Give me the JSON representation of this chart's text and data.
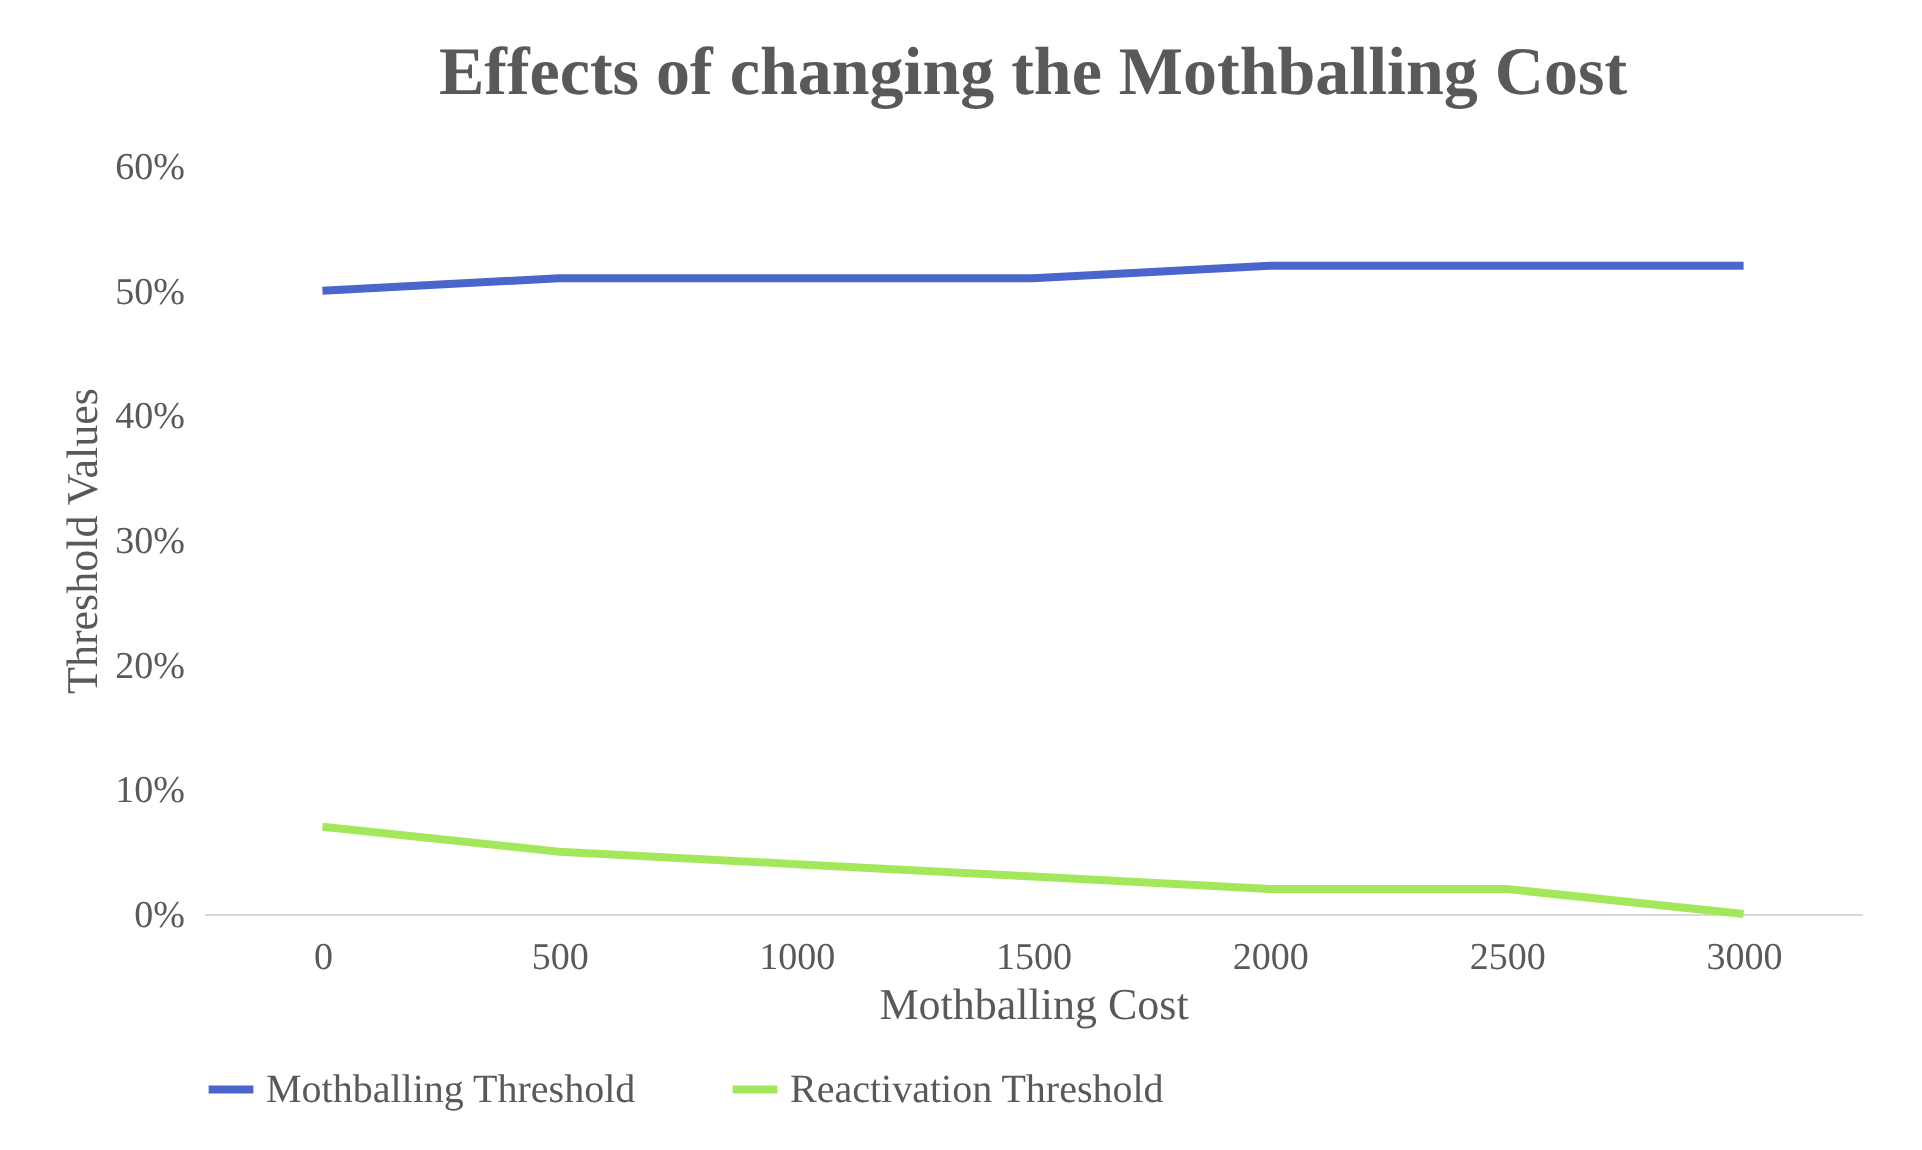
{
  "chart_data": {
    "type": "line",
    "title": "Effects of changing the Mothballing Cost",
    "xlabel": "Mothballing Cost",
    "ylabel": "Threshold Values",
    "categories": [
      "0",
      "500",
      "1000",
      "1500",
      "2000",
      "2500",
      "3000"
    ],
    "series": [
      {
        "name": "Mothballing Threshold",
        "color": "#4a66cc",
        "values": [
          50,
          51,
          51,
          51,
          52,
          52,
          52
        ]
      },
      {
        "name": "Reactivation Threshold",
        "color": "#a3e85a",
        "values": [
          7,
          5,
          4,
          3,
          2,
          2,
          0
        ]
      }
    ],
    "ylim": [
      0,
      60
    ],
    "yticks": [
      {
        "value": 0,
        "label": "0%"
      },
      {
        "value": 10,
        "label": "10%"
      },
      {
        "value": 20,
        "label": "20%"
      },
      {
        "value": 30,
        "label": "30%"
      },
      {
        "value": 40,
        "label": "40%"
      },
      {
        "value": 50,
        "label": "50%"
      },
      {
        "value": 60,
        "label": "60%"
      }
    ],
    "grid": false,
    "legend": "bottom",
    "marker": "none",
    "line_style": "solid"
  }
}
